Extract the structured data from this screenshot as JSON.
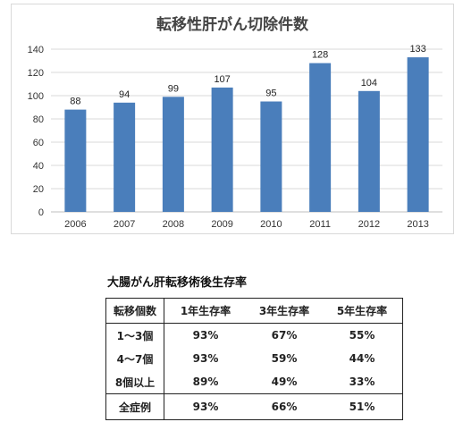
{
  "chart_data": {
    "type": "bar",
    "title": "転移性肝がん切除件数",
    "categories": [
      "2006",
      "2007",
      "2008",
      "2009",
      "2010",
      "2011",
      "2012",
      "2013"
    ],
    "values": [
      88,
      94,
      99,
      107,
      95,
      128,
      104,
      133
    ],
    "ylim": [
      0,
      140
    ],
    "yticks": [
      0,
      20,
      40,
      60,
      80,
      100,
      120,
      140
    ],
    "grid": true,
    "bar_color": "#4a7ebb",
    "data_labels": true
  },
  "table": {
    "title": "大腸がん肝転移術後生存率",
    "headers": [
      "転移個数",
      "1年生存率",
      "3年生存率",
      "5年生存率"
    ],
    "rows": [
      [
        "1～3個",
        "93%",
        "67%",
        "55%"
      ],
      [
        "4～7個",
        "93%",
        "59%",
        "44%"
      ],
      [
        "8個以上",
        "89%",
        "49%",
        "33%"
      ]
    ],
    "total": [
      "全症例",
      "93%",
      "66%",
      "51%"
    ]
  }
}
